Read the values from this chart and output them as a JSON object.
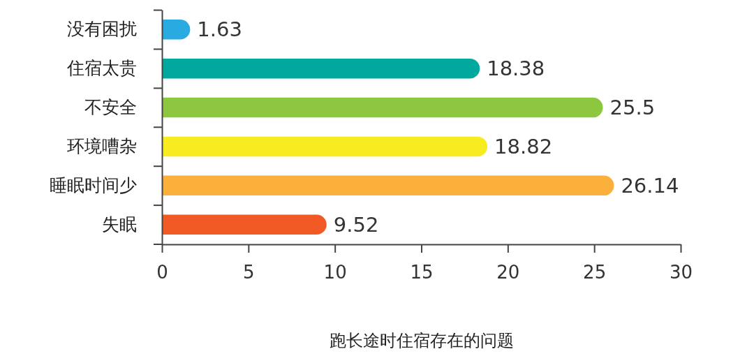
{
  "chart_data": {
    "type": "bar",
    "orientation": "horizontal",
    "xlabel": "跑长途时住宿存在的问题",
    "categories": [
      "没有困扰",
      "住宿太贵",
      "不安全",
      "环境嘈杂",
      "睡眠时间少",
      "失眠"
    ],
    "values": [
      1.63,
      18.38,
      25.5,
      18.82,
      26.14,
      9.52
    ],
    "colors": [
      "#29aae1",
      "#00a89d",
      "#8dc63f",
      "#f7ec1f",
      "#fbb03b",
      "#f15a24"
    ],
    "xlim": [
      0,
      30
    ],
    "xticks": [
      0,
      5,
      10,
      15,
      20,
      25,
      30
    ],
    "data_labels": true
  }
}
